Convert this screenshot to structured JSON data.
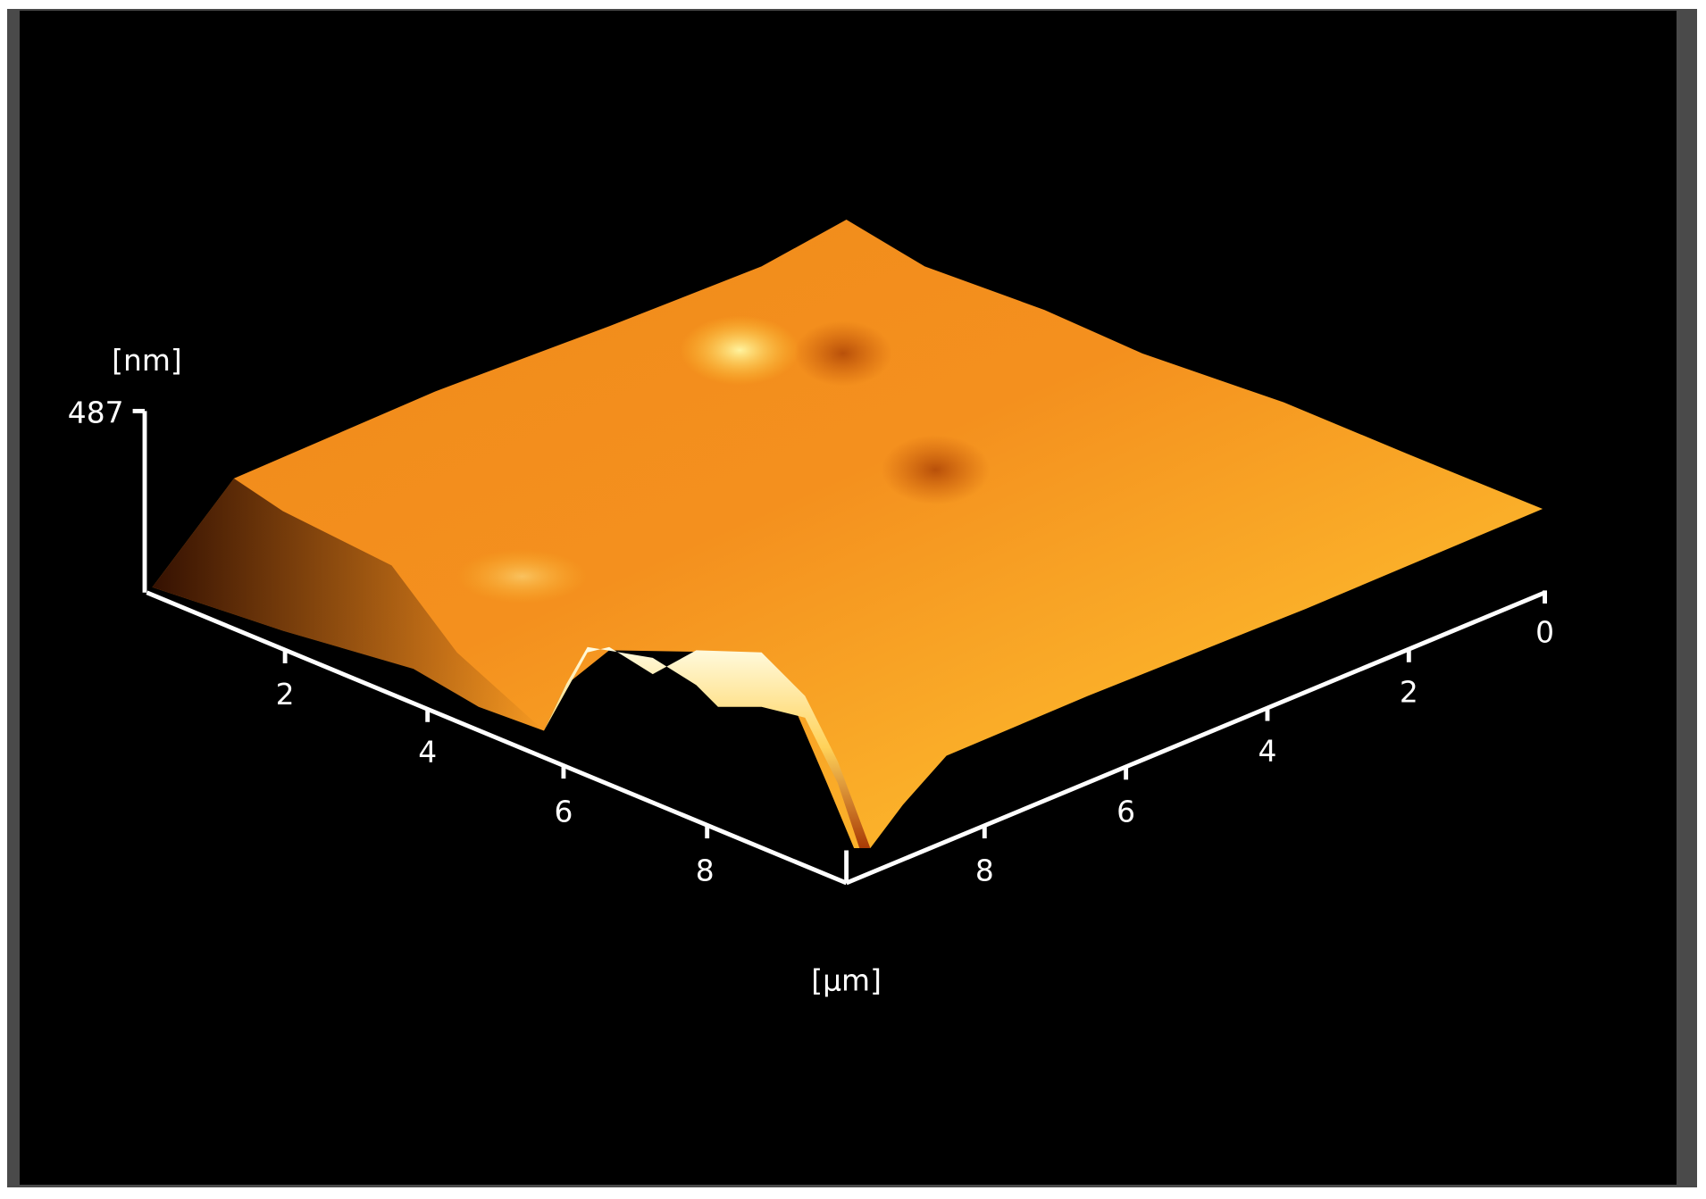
{
  "z_axis": {
    "unit": "[nm]",
    "max": 487
  },
  "left_axis": {
    "ticks": [
      2,
      4,
      6,
      8
    ]
  },
  "right_axis": {
    "ticks": [
      0,
      2,
      4,
      6,
      8
    ]
  },
  "xy_unit": "[µm]"
}
